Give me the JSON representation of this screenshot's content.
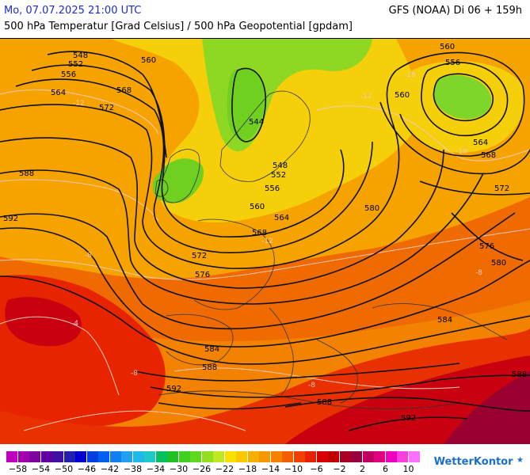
{
  "header": {
    "date": "Mo, 07.07.2025 21:00 UTC",
    "model": "GFS (NOAA) Di 06 + 159h",
    "subtitle": "500 hPa Temperatur [Grad Celsius] / 500 hPa Geopotential [gpdam]"
  },
  "map": {
    "region": "Europe / North Atlantic",
    "contour_labels": [
      {
        "id": "c548a",
        "text": "548"
      },
      {
        "id": "c552a",
        "text": "552"
      },
      {
        "id": "c556a",
        "text": "556"
      },
      {
        "id": "c564a",
        "text": "564"
      },
      {
        "id": "c572a",
        "text": "572"
      },
      {
        "id": "c560a",
        "text": "560"
      },
      {
        "id": "c568a",
        "text": "568"
      },
      {
        "id": "c588a",
        "text": "588"
      },
      {
        "id": "c592a",
        "text": "592"
      },
      {
        "id": "c544a",
        "text": "544"
      },
      {
        "id": "c548b",
        "text": "548"
      },
      {
        "id": "c552b",
        "text": "552"
      },
      {
        "id": "c556b",
        "text": "556"
      },
      {
        "id": "c560b",
        "text": "560"
      },
      {
        "id": "c564b",
        "text": "564"
      },
      {
        "id": "c568b",
        "text": "568"
      },
      {
        "id": "c572b",
        "text": "572"
      },
      {
        "id": "c576a",
        "text": "576"
      },
      {
        "id": "c580a",
        "text": "580"
      },
      {
        "id": "c584a",
        "text": "584"
      },
      {
        "id": "c588b",
        "text": "588"
      },
      {
        "id": "c592b",
        "text": "592"
      },
      {
        "id": "c560c",
        "text": "560"
      },
      {
        "id": "c556c",
        "text": "556"
      },
      {
        "id": "c560d",
        "text": "560"
      },
      {
        "id": "c564c",
        "text": "564"
      },
      {
        "id": "c568c",
        "text": "568"
      },
      {
        "id": "c572c",
        "text": "572"
      },
      {
        "id": "c576b",
        "text": "576"
      },
      {
        "id": "c580b",
        "text": "580"
      },
      {
        "id": "c584b",
        "text": "584"
      },
      {
        "id": "c588c",
        "text": "588"
      },
      {
        "id": "c592c",
        "text": "592"
      },
      {
        "id": "c588d",
        "text": "588"
      }
    ],
    "isotherm_labels": [
      {
        "id": "t18a",
        "text": "-18"
      },
      {
        "id": "t12a",
        "text": "-12"
      },
      {
        "id": "t12b",
        "text": "-12"
      },
      {
        "id": "t8a",
        "text": "-8"
      },
      {
        "id": "t4a",
        "text": "-4"
      },
      {
        "id": "t8b",
        "text": "-8"
      },
      {
        "id": "t8c",
        "text": "-8"
      },
      {
        "id": "t12c",
        "text": "-12"
      },
      {
        "id": "t18b",
        "text": "-18"
      },
      {
        "id": "t8d",
        "text": "-8"
      }
    ],
    "colors": {
      "green_cold": "#7fd62a",
      "light_green": "#a6e02a",
      "yellow": "#f4d20e",
      "orange_light": "#f7a700",
      "orange": "#f28200",
      "orange_dark": "#ee5d00",
      "red": "#e82000",
      "red_dark": "#d20000",
      "maroon": "#a8003c",
      "contour": "#111111",
      "isotherm": "#f5c9b6",
      "coast": "#333333"
    }
  },
  "legend": {
    "colors": [
      "#c000c0",
      "#a000b0",
      "#8000a0",
      "#6000a0",
      "#4010a0",
      "#2020b0",
      "#0000d0",
      "#0040e0",
      "#0060f0",
      "#1080f0",
      "#20a0f0",
      "#20b8e8",
      "#20c8c8",
      "#00c060",
      "#20c020",
      "#40d020",
      "#60d820",
      "#90e020",
      "#c0e820",
      "#f8e000",
      "#f8c800",
      "#f8b000",
      "#f89800",
      "#f88000",
      "#f06000",
      "#f04000",
      "#e82000",
      "#d80000",
      "#c00000",
      "#a80020",
      "#980040",
      "#c00060",
      "#e00080",
      "#f000c0",
      "#f840e0",
      "#ff70ff"
    ],
    "ticks": [
      "−58",
      "−54",
      "−50",
      "−46",
      "−42",
      "−38",
      "−34",
      "−30",
      "−26",
      "−22",
      "−18",
      "−14",
      "−10",
      "−6",
      "−2",
      "2",
      "6",
      "10"
    ],
    "brand": "WetterKontor"
  }
}
